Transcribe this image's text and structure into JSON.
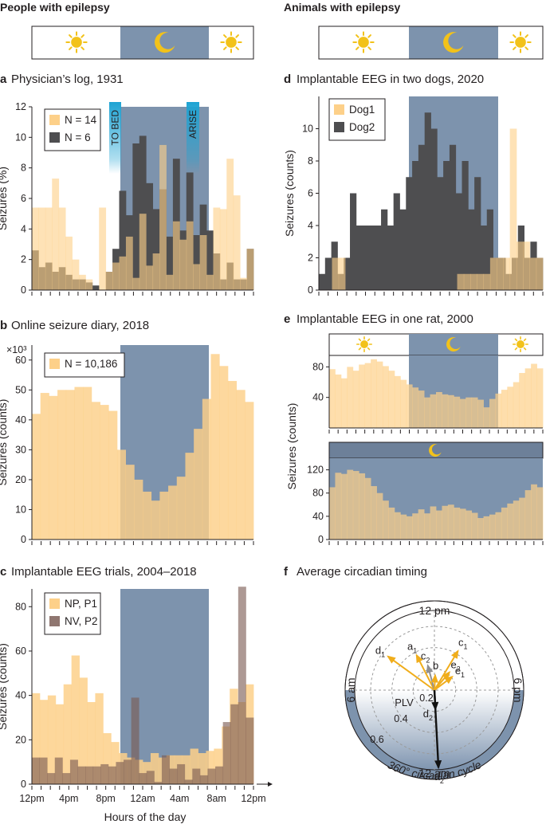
{
  "colors": {
    "orange": "#fdd089",
    "dark": "#4e4e50",
    "night": "#7d93ad",
    "overlap": "#c9ad7e",
    "overlap_dark": "#6e6552",
    "brown": "#8f7670",
    "sun": "#f2c21a",
    "arrow_orange": "#f0ad1b",
    "arrow_gray": "#8f8f92",
    "bar_blue": "#1ea3d3"
  },
  "headers": {
    "left": "People with epilepsy",
    "right": "Animals with epilepsy"
  },
  "icons": {
    "sun": "sun-icon",
    "moon": "moon-icon"
  },
  "hour_ticks": [
    "12pm",
    "4pm",
    "8pm",
    "12am",
    "4am",
    "8am",
    "12pm"
  ],
  "xlabel": "Hours of the day",
  "chart_data": [
    {
      "id": "a",
      "letter": "a",
      "title": "Physician’s log, 1931",
      "type": "bar",
      "ylabel": "Seizures (%)",
      "ylim": [
        0,
        12
      ],
      "yticks": [
        0,
        2,
        4,
        6,
        8,
        10,
        12
      ],
      "night_bins": [
        9,
        19
      ],
      "annotations": [
        "TO BED",
        "ARISE"
      ],
      "series": [
        {
          "name": "N = 14",
          "values": [
            5.4,
            5.4,
            5.4,
            7.3,
            5.4,
            3.5,
            2.0,
            1.0,
            0.7,
            0.0,
            5.4,
            1.2,
            1.8,
            2.2,
            3.5,
            0.8,
            5.0,
            1.6,
            2.4,
            9.5,
            1.0,
            4.5,
            3.3,
            4.5,
            1.7,
            3.6,
            1.0,
            5.4,
            5.3,
            8.6,
            6.2,
            0.8,
            2.7
          ]
        },
        {
          "name": "N = 6",
          "values": [
            2.6,
            1.5,
            1.8,
            1.2,
            1.5,
            1.0,
            0.7,
            0.7,
            0.5,
            0.3,
            0.0,
            1.2,
            2.7,
            6.5,
            4.9,
            9.6,
            10.1,
            7.0,
            5.3,
            6.6,
            3.5,
            8.6,
            3.9,
            7.7,
            3.6,
            5.6,
            3.9,
            2.4,
            0.7,
            1.8,
            0.7,
            0.7,
            2.7
          ]
        }
      ]
    },
    {
      "id": "b",
      "letter": "b",
      "title": "Online seizure diary, 2018",
      "type": "bar",
      "ylabel": "Seizures (counts)",
      "ylim": [
        0,
        65
      ],
      "yticks": [
        0,
        10,
        20,
        30,
        40,
        50,
        60
      ],
      "scale_note": "×10³",
      "night_bins": [
        9,
        19
      ],
      "series": [
        {
          "name": "N = 10,186",
          "values": [
            42,
            49,
            48,
            50,
            50,
            51,
            51,
            46,
            45,
            43,
            30,
            25,
            20,
            16,
            13,
            16,
            18,
            21,
            29,
            37,
            47,
            62,
            58,
            53,
            50,
            46
          ]
        }
      ]
    },
    {
      "id": "c",
      "letter": "c",
      "title": "Implantable EEG trials, 2004–2018",
      "type": "bar",
      "ylabel": "Seizures (counts)",
      "ylim": [
        0,
        88
      ],
      "yticks": [
        0,
        20,
        40,
        60,
        80
      ],
      "night_bins": [
        9,
        19
      ],
      "series": [
        {
          "name": "NP, P1",
          "values": [
            41,
            38,
            40,
            36,
            45,
            58,
            48,
            37,
            41,
            23,
            19,
            14,
            12,
            11,
            10,
            14,
            12,
            13,
            13,
            13,
            16,
            14,
            15,
            16,
            26,
            43,
            37,
            45
          ]
        },
        {
          "name": "NV, P2",
          "values": [
            12,
            12,
            5,
            12,
            5,
            11,
            8,
            8,
            8,
            9,
            8,
            10,
            11,
            39,
            5,
            6,
            1,
            13,
            7,
            9,
            2,
            7,
            4,
            7,
            8,
            28,
            36,
            89,
            30
          ]
        }
      ]
    },
    {
      "id": "d",
      "letter": "d",
      "title": "Implantable EEG in two dogs, 2020",
      "type": "bar",
      "ylabel": "Seizures (counts)",
      "ylim": [
        0,
        12
      ],
      "yticks": [
        0,
        2,
        4,
        6,
        8,
        10
      ],
      "night_bins": [
        9,
        19
      ],
      "series": [
        {
          "name": "Dog1",
          "values": [
            0,
            0,
            2,
            2,
            0,
            0,
            0,
            0,
            0,
            0,
            0,
            0,
            0,
            0,
            0,
            0,
            0,
            0,
            0,
            0,
            0,
            1,
            1,
            1,
            1,
            1,
            2,
            2,
            2,
            10,
            3,
            3,
            2,
            2
          ]
        },
        {
          "name": "Dog2",
          "values": [
            1,
            2,
            3,
            1,
            2,
            6,
            4,
            4,
            4,
            4,
            5,
            4,
            6,
            5,
            7,
            8,
            9,
            11,
            10,
            7,
            8,
            9,
            6,
            8,
            5,
            7,
            4,
            5,
            2,
            2,
            1,
            2,
            4,
            2,
            3,
            2
          ]
        }
      ]
    },
    {
      "id": "e1",
      "letter": "e",
      "title": "Implantable EEG in one rat, 2000",
      "type": "area",
      "ylabel": "Seizures (counts)",
      "ylim": [
        0,
        95
      ],
      "yticks": [
        40,
        80
      ],
      "night_bins": [
        9,
        19
      ],
      "values": [
        77,
        70,
        65,
        80,
        75,
        83,
        85,
        90,
        87,
        81,
        75,
        68,
        63,
        57,
        53,
        49,
        40,
        44,
        47,
        44,
        43,
        41,
        38,
        40,
        40,
        37,
        27,
        38,
        45,
        50,
        54,
        60,
        72,
        78,
        84,
        78
      ]
    },
    {
      "id": "e2",
      "type": "area",
      "ylim": [
        0,
        140
      ],
      "yticks": [
        0,
        40,
        80,
        120
      ],
      "night_bins": [
        0,
        24
      ],
      "values": [
        90,
        115,
        113,
        120,
        118,
        114,
        106,
        92,
        80,
        67,
        55,
        47,
        43,
        40,
        45,
        52,
        45,
        57,
        50,
        58,
        60,
        55,
        53,
        50,
        46,
        37,
        40,
        43,
        47,
        55,
        62,
        67,
        72,
        85,
        95,
        90
      ]
    }
  ],
  "polar": {
    "letter": "f",
    "title": "Average circadian timing",
    "dial_labels": {
      "top": "12 pm",
      "right": "6 pm",
      "bottom": "12 am",
      "left": "6 am"
    },
    "plv_label": "PLV",
    "plv_rings": [
      0.2,
      0.4,
      0.6
    ],
    "cycle_label": "360° circadian cycle",
    "vectors": [
      {
        "name": "a1",
        "base": "a",
        "sub": "1",
        "angle_deg": 333,
        "plv": 0.37,
        "color": "orange"
      },
      {
        "name": "d1",
        "base": "d",
        "sub": "1",
        "angle_deg": 306,
        "plv": 0.54,
        "color": "orange"
      },
      {
        "name": "c2",
        "base": "c",
        "sub": "2",
        "angle_deg": 345,
        "plv": 0.24,
        "color": "gray"
      },
      {
        "name": "b",
        "base": "b",
        "sub": "",
        "angle_deg": 3,
        "plv": 0.14,
        "color": "orange"
      },
      {
        "name": "c1",
        "base": "c",
        "sub": "1",
        "angle_deg": 31,
        "plv": 0.43,
        "color": "orange"
      },
      {
        "name": "e2",
        "base": "e",
        "sub": "2",
        "angle_deg": 40,
        "plv": 0.22,
        "color": "orange"
      },
      {
        "name": "e1",
        "base": "e",
        "sub": "1",
        "angle_deg": 53,
        "plv": 0.21,
        "color": "orange"
      },
      {
        "name": "d2",
        "base": "d",
        "sub": "2",
        "angle_deg": 177,
        "plv": 0.18,
        "color": "black"
      },
      {
        "name": "a2",
        "base": "a",
        "sub": "2",
        "angle_deg": 177,
        "plv": 0.73,
        "color": "black"
      }
    ]
  }
}
